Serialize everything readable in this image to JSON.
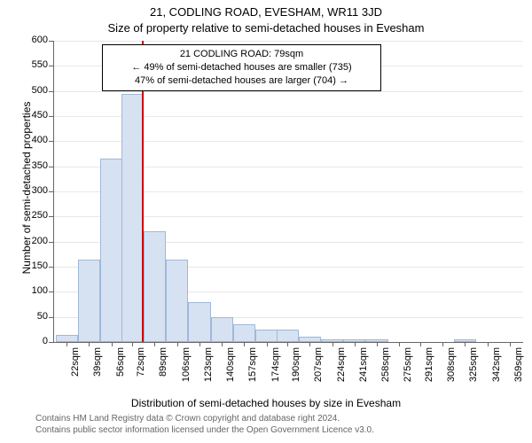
{
  "titles": {
    "main": "21, CODLING ROAD, EVESHAM, WR11 3JD",
    "sub": "Size of property relative to semi-detached houses in Evesham"
  },
  "axes": {
    "ylabel": "Number of semi-detached properties",
    "xlabel": "Distribution of semi-detached houses by size in Evesham",
    "ylim": [
      0,
      600
    ],
    "ytick_step": 50,
    "label_fontsize": 12,
    "tick_fontsize": 11,
    "grid_color": "#e8e8e8",
    "axis_color": "#666666"
  },
  "chart": {
    "type": "histogram",
    "bar_fill": "#d6e2f2",
    "bar_border": "#9fb8d9",
    "background_color": "#ffffff",
    "bar_width_ratio": 1.0,
    "categories": [
      "22sqm",
      "39sqm",
      "56sqm",
      "72sqm",
      "89sqm",
      "106sqm",
      "123sqm",
      "140sqm",
      "157sqm",
      "174sqm",
      "190sqm",
      "207sqm",
      "224sqm",
      "241sqm",
      "258sqm",
      "275sqm",
      "291sqm",
      "308sqm",
      "325sqm",
      "342sqm",
      "359sqm"
    ],
    "x_values": [
      22,
      39,
      56,
      72,
      89,
      106,
      123,
      140,
      157,
      174,
      190,
      207,
      224,
      241,
      258,
      275,
      291,
      308,
      325,
      342,
      359
    ],
    "values": [
      15,
      165,
      365,
      495,
      220,
      165,
      80,
      50,
      35,
      25,
      25,
      10,
      5,
      5,
      5,
      0,
      0,
      0,
      5,
      0,
      0
    ]
  },
  "marker": {
    "x_value": 79,
    "color": "#cc0000"
  },
  "annotation": {
    "line1": "21 CODLING ROAD: 79sqm",
    "line2": "← 49% of semi-detached houses are smaller (735)",
    "line3": "47% of semi-detached houses are larger (704) →",
    "border_color": "#000000",
    "background_color": "#ffffff",
    "fontsize": 11
  },
  "credit": {
    "line1": "Contains HM Land Registry data © Crown copyright and database right 2024.",
    "line2": "Contains public sector information licensed under the Open Government Licence v3.0.",
    "fontsize": 10,
    "color": "#666666"
  }
}
